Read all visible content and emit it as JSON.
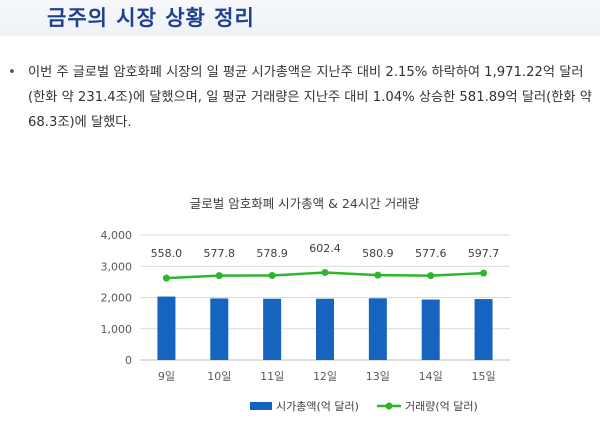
{
  "page": {
    "title": "금주의 시장 상황 정리",
    "bullet": "•",
    "summary": "이번 주 글로벌 암호화폐 시장의 일 평균 시가총액은 지난주 대비 2.15% 하락하여 1,971.22억 달러(한화 약 231.4조)에 달했으며, 일 평균 거래량은 지난주 대비 1.04% 상승한 581.89억 달러(한화 약 68.3조)에 달했다."
  },
  "chart_data": {
    "type": "bar",
    "title": "글로벌 암호화폐 시가총액 & 24시간 거래량",
    "categories": [
      "9일",
      "10일",
      "11일",
      "12일",
      "13일",
      "14일",
      "15일"
    ],
    "y_ticks": [
      "4,000",
      "3,000",
      "2,000",
      "1,000",
      "0"
    ],
    "ylim": [
      0,
      4000
    ],
    "grid": true,
    "legend_position": "bottom",
    "series": [
      {
        "name": "시가총액(억 달러)",
        "type": "bar",
        "color": "#1565c0",
        "values": [
          2030,
          1970,
          1960,
          1960,
          1975,
          1935,
          1950
        ]
      },
      {
        "name": "거래량(억 달러)",
        "type": "line",
        "color": "#2db52d",
        "values": [
          558.0,
          577.8,
          578.9,
          602.4,
          580.9,
          577.6,
          597.7
        ],
        "labels": [
          "558.0",
          "577.8",
          "578.9",
          "602.4",
          "580.9",
          "577.6",
          "597.7"
        ]
      }
    ]
  }
}
